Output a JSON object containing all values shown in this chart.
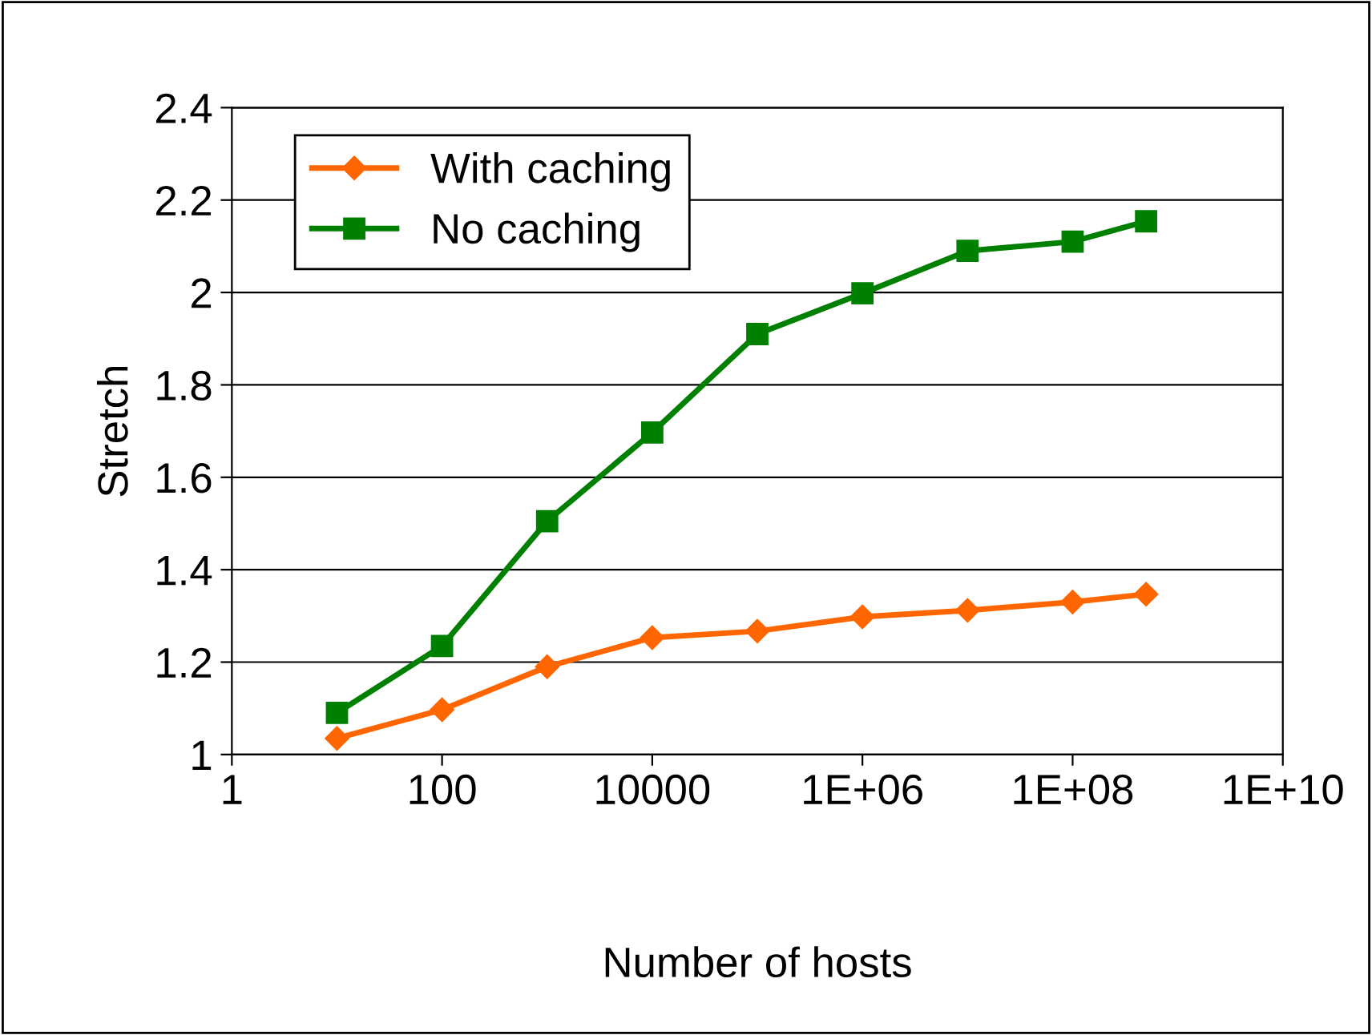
{
  "chart_data": {
    "type": "line",
    "xlabel": "Number of hosts",
    "ylabel": "Stretch",
    "x": [
      10,
      100,
      1000,
      10000,
      100000,
      1000000,
      10000000,
      100000000,
      500000000
    ],
    "series": [
      {
        "name": "With caching",
        "color": "#ff6600",
        "marker": "diamond",
        "values": [
          1.035,
          1.097,
          1.19,
          1.253,
          1.267,
          1.298,
          1.312,
          1.33,
          1.347
        ]
      },
      {
        "name": "No caching",
        "color": "#008000",
        "marker": "square",
        "values": [
          1.09,
          1.235,
          1.505,
          1.697,
          1.91,
          1.998,
          2.09,
          2.11,
          2.154
        ]
      }
    ],
    "log": "x",
    "xlim": [
      1,
      10000000000
    ],
    "xticks": [
      1,
      100,
      10000,
      {
        "value": 1000000,
        "label": "1E+06"
      },
      {
        "value": 100000000,
        "label": "1E+08"
      },
      {
        "value": 10000000000,
        "label": "1E+10"
      }
    ],
    "ylim": [
      1,
      2.4
    ],
    "yticks": [
      1,
      1.2,
      1.4,
      1.6,
      1.8,
      2,
      2.2,
      2.4
    ],
    "grid": "y",
    "legend": "top left",
    "line_style": "solid"
  }
}
